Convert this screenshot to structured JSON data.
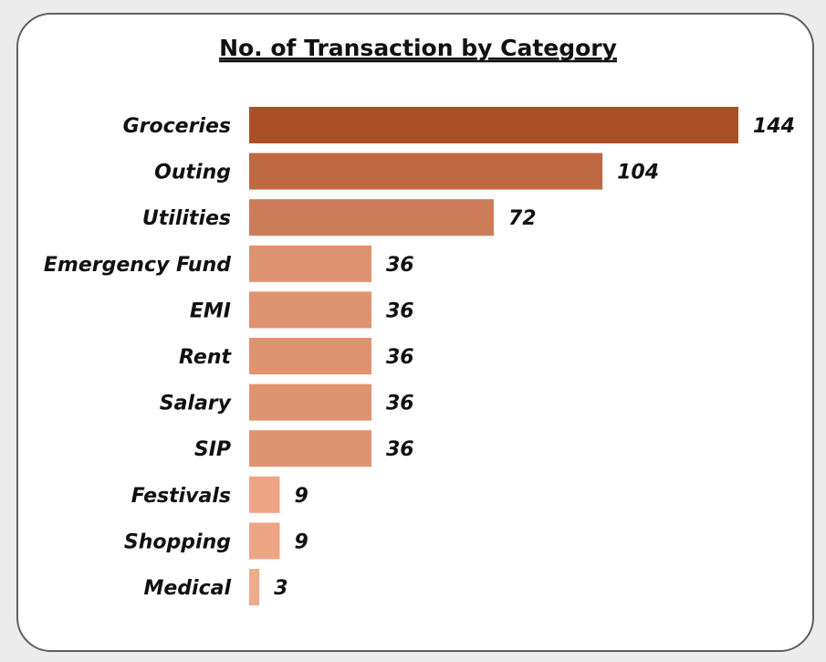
{
  "chart_data": {
    "type": "bar",
    "orientation": "horizontal",
    "title": "No. of Transaction by Category",
    "xlabel": "",
    "ylabel": "",
    "categories": [
      "Groceries",
      "Outing",
      "Utilities",
      "Emergency Fund",
      "EMI",
      "Rent",
      "Salary",
      "SIP",
      "Festivals",
      "Shopping",
      "Medical"
    ],
    "values": [
      144,
      104,
      72,
      36,
      36,
      36,
      36,
      36,
      9,
      9,
      3
    ],
    "xlim": [
      0,
      144
    ],
    "grid": false,
    "legend": "none",
    "colors": [
      "#ab4f28",
      "#bf6a45",
      "#cd7c59",
      "#e09370",
      "#e09370",
      "#e09370",
      "#e09370",
      "#e09370",
      "#eea586",
      "#eea586",
      "#f0aa8c"
    ]
  }
}
